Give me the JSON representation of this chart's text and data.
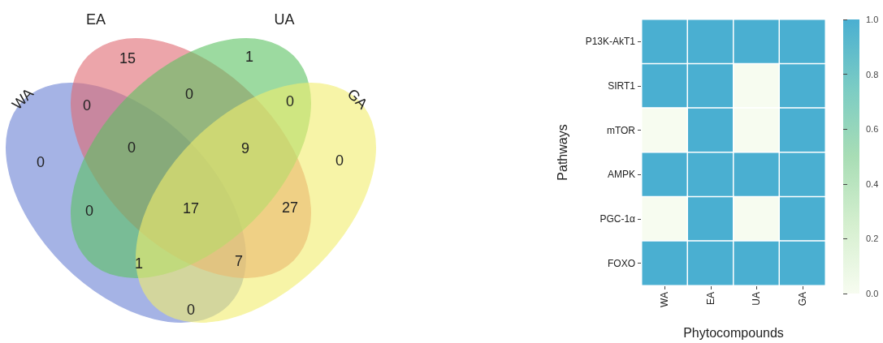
{
  "chart_data": [
    {
      "type": "other",
      "categories": [
        "WA",
        "EA",
        "UA",
        "GA"
      ],
      "colors": [
        "#6b82d4",
        "#e06a72",
        "#5cc262",
        "#f2ee6e"
      ],
      "annotations": [
        "0",
        "15",
        "1",
        "0",
        "0",
        "0",
        "0",
        "0",
        "27",
        "0",
        "0",
        "9",
        "1",
        "7",
        "17"
      ]
    },
    {
      "type": "heatmap",
      "xlabel": "Phytocompounds",
      "ylabel": "Pathways",
      "categories": [
        "WA",
        "EA",
        "UA",
        "GA"
      ],
      "y_categories": [
        "P13K-AkT1",
        "SIRT1",
        "mTOR",
        "AMPK",
        "PGC-1α",
        "FOXO"
      ],
      "cells": [
        [
          1,
          1,
          1,
          1
        ],
        [
          1,
          1,
          0,
          1
        ],
        [
          0,
          1,
          0,
          1
        ],
        [
          1,
          1,
          1,
          1
        ],
        [
          0,
          1,
          0,
          1
        ],
        [
          1,
          1,
          1,
          1
        ]
      ],
      "clim": [
        0,
        1
      ],
      "cticks": [
        {
          "value": 0,
          "label": "0.0"
        },
        {
          "value": 0.2,
          "label": "0.2"
        },
        {
          "value": 0.4,
          "label": "0.4"
        },
        {
          "value": 0.6,
          "label": "0.6"
        },
        {
          "value": 0.8,
          "label": "0.8"
        },
        {
          "value": 1,
          "label": "1.0"
        }
      ]
    }
  ]
}
